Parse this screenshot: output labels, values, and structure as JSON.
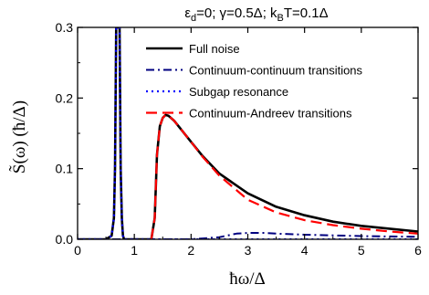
{
  "chart_data": {
    "type": "line",
    "title": "ε_d=0;  γ=0.5Δ;  k_BT=0.1Δ",
    "title_parts": {
      "eps": "ε",
      "eps_sub": "d",
      "mid": "=0;  γ=0.5Δ;  k",
      "kb_sub": "B",
      "end": "T=0.1Δ"
    },
    "xlabel": "ħω/Δ",
    "ylabel": "S̃(ω)  (ħ/Δ)",
    "xlim": [
      0,
      6
    ],
    "ylim": [
      0,
      0.3
    ],
    "xticks": [
      "0",
      "1",
      "2",
      "3",
      "4",
      "5",
      "6"
    ],
    "yticks": [
      "0.0",
      "0.1",
      "0.2",
      "0.3"
    ],
    "legend_position": "top-right",
    "grid": false,
    "series": [
      {
        "name": "Full noise",
        "color": "#000000",
        "style": "solid",
        "x": [
          0,
          0.5,
          0.6,
          0.64,
          0.66,
          0.68,
          0.7,
          0.72,
          0.74,
          0.76,
          0.78,
          0.8,
          0.82,
          1.0,
          1.3,
          1.36,
          1.4,
          1.45,
          1.5,
          1.55,
          1.6,
          1.7,
          1.8,
          2.0,
          2.2,
          2.5,
          3.0,
          3.5,
          4.0,
          4.5,
          5.0,
          5.5,
          6.0
        ],
        "y": [
          0,
          0,
          0.005,
          0.03,
          0.1,
          0.3,
          0.3,
          0.3,
          0.3,
          0.1,
          0.03,
          0.005,
          0,
          0,
          0,
          0.03,
          0.12,
          0.16,
          0.172,
          0.176,
          0.175,
          0.168,
          0.158,
          0.138,
          0.118,
          0.093,
          0.065,
          0.046,
          0.034,
          0.025,
          0.019,
          0.015,
          0.011
        ]
      },
      {
        "name": "Continuum-continuum transitions",
        "color": "#000080",
        "style": "dashdot",
        "x": [
          0,
          2.0,
          2.5,
          2.8,
          3.0,
          3.3,
          3.5,
          4.0,
          4.5,
          5.0,
          5.5,
          6.0
        ],
        "y": [
          0,
          0,
          0.003,
          0.008,
          0.009,
          0.009,
          0.008,
          0.0065,
          0.0055,
          0.0045,
          0.004,
          0.0035
        ]
      },
      {
        "name": "Subgap resonance",
        "color": "#0000ff",
        "style": "dotted",
        "x": [
          0,
          0.5,
          0.6,
          0.64,
          0.66,
          0.68,
          0.7,
          0.72,
          0.74,
          0.76,
          0.78,
          0.8,
          0.82,
          1.0,
          6.0
        ],
        "y": [
          0,
          0,
          0.005,
          0.03,
          0.1,
          0.3,
          0.3,
          0.3,
          0.3,
          0.1,
          0.03,
          0.005,
          0,
          0,
          0
        ]
      },
      {
        "name": "Continuum-Andreev transitions",
        "color": "#ff0000",
        "style": "dashed",
        "x": [
          1.3,
          1.36,
          1.4,
          1.45,
          1.5,
          1.55,
          1.6,
          1.7,
          1.8,
          2.0,
          2.2,
          2.5,
          3.0,
          3.5,
          4.0,
          4.5,
          5.0,
          5.5,
          6.0
        ],
        "y": [
          0,
          0.03,
          0.12,
          0.16,
          0.172,
          0.176,
          0.175,
          0.168,
          0.158,
          0.138,
          0.117,
          0.09,
          0.056,
          0.038,
          0.027,
          0.02,
          0.015,
          0.011,
          0.008
        ]
      }
    ]
  }
}
